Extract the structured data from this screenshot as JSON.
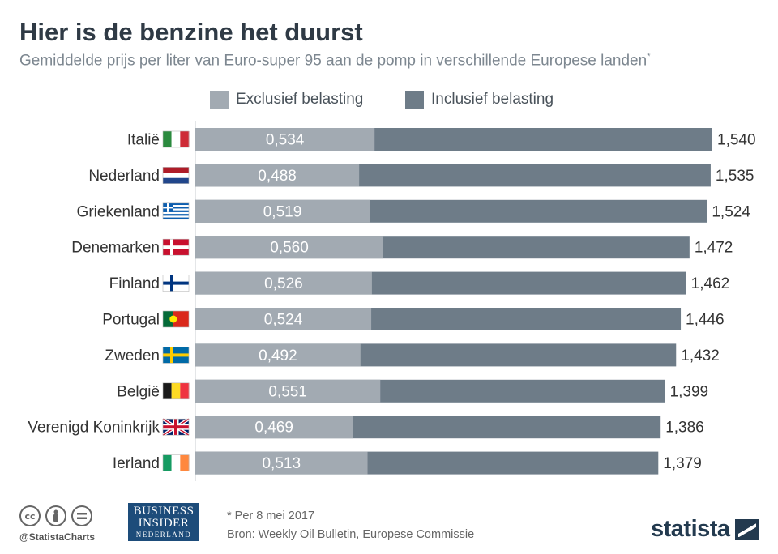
{
  "title": "Hier is de benzine het duurst",
  "subtitle": "Gemiddelde prijs per liter van Euro-super 95 aan de pomp in verschillende Europese landen",
  "subtitle_mark": "*",
  "colors": {
    "excl": "#a2aab2",
    "incl": "#6e7c88",
    "label_dark": "#333333"
  },
  "legend": {
    "excl": "Exclusief belasting",
    "incl": "Inclusief belasting"
  },
  "chart_data": {
    "type": "bar",
    "orientation": "horizontal",
    "categories": [
      "Italië",
      "Nederland",
      "Griekenland",
      "Denemarken",
      "Finland",
      "Portugal",
      "Zweden",
      "België",
      "Verenigd Koninkrijk",
      "Ierland"
    ],
    "flags": [
      "italy-flag",
      "netherlands-flag",
      "greece-flag",
      "denmark-flag",
      "finland-flag",
      "portugal-flag",
      "sweden-flag",
      "belgium-flag",
      "uk-flag",
      "ireland-flag"
    ],
    "series": [
      {
        "name": "Exclusief belasting",
        "values": [
          0.534,
          0.488,
          0.519,
          0.56,
          0.526,
          0.524,
          0.492,
          0.551,
          0.469,
          0.513
        ],
        "labels": [
          "0,534",
          "0,488",
          "0,519",
          "0,560",
          "0,526",
          "0,524",
          "0,492",
          "0,551",
          "0,469",
          "0,513"
        ]
      },
      {
        "name": "Inclusief belasting",
        "values": [
          1.54,
          1.535,
          1.524,
          1.472,
          1.462,
          1.446,
          1.432,
          1.399,
          1.386,
          1.379
        ],
        "labels": [
          "1,540",
          "1,535",
          "1,524",
          "1,472",
          "1,462",
          "1,446",
          "1,432",
          "1,399",
          "1,386",
          "1,379"
        ]
      }
    ],
    "xlim": [
      0,
      1.54
    ]
  },
  "footer": {
    "handle": "@StatistaCharts",
    "brand_lines": [
      "BUSINESS",
      "INSIDER",
      "NEDERLAND"
    ],
    "note": "* Per 8 mei 2017",
    "source": "Bron: Weekly Oil Bulletin, Europese Commissie",
    "statista": "statista",
    "cc_icons": [
      "cc-icon",
      "by-icon",
      "nd-icon"
    ]
  }
}
